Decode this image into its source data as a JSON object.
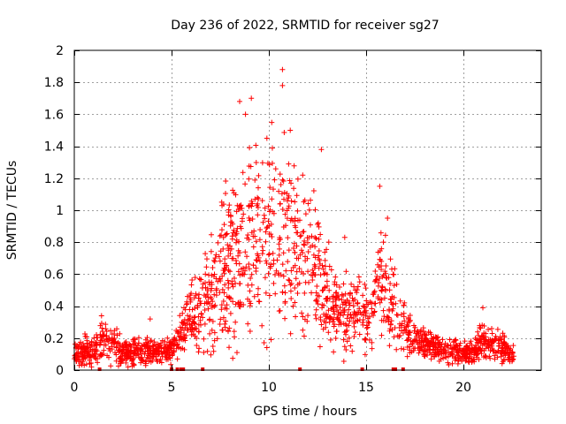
{
  "chart_data": {
    "type": "scatter",
    "title": "Day 236 of 2022, SRMTID for receiver sg27",
    "xlabel": "GPS time / hours",
    "ylabel": "SRMTID / TECUs",
    "xlim": [
      0,
      24
    ],
    "ylim": [
      0,
      2
    ],
    "xticks": [
      0,
      5,
      10,
      15,
      20
    ],
    "yticks": [
      0,
      0.2,
      0.4,
      0.6,
      0.8,
      1,
      1.2,
      1.4,
      1.6,
      1.8,
      2
    ],
    "grid": true,
    "marker": "plus",
    "marker_color": "#ff0000",
    "data_extent_hours": [
      0,
      22.6
    ],
    "activity_profile": [
      {
        "t": 0.0,
        "base": 0.1,
        "spread": 0.08
      },
      {
        "t": 1.0,
        "base": 0.13,
        "spread": 0.12
      },
      {
        "t": 1.5,
        "base": 0.18,
        "spread": 0.15
      },
      {
        "t": 2.5,
        "base": 0.12,
        "spread": 0.1
      },
      {
        "t": 4.0,
        "base": 0.11,
        "spread": 0.09
      },
      {
        "t": 5.0,
        "base": 0.12,
        "spread": 0.08
      },
      {
        "t": 5.5,
        "base": 0.25,
        "spread": 0.15
      },
      {
        "t": 6.5,
        "base": 0.4,
        "spread": 0.3
      },
      {
        "t": 7.5,
        "base": 0.55,
        "spread": 0.45
      },
      {
        "t": 8.5,
        "base": 0.75,
        "spread": 0.6
      },
      {
        "t": 9.5,
        "base": 0.8,
        "spread": 0.65
      },
      {
        "t": 10.5,
        "base": 0.8,
        "spread": 0.7
      },
      {
        "t": 11.5,
        "base": 0.72,
        "spread": 0.55
      },
      {
        "t": 12.5,
        "base": 0.62,
        "spread": 0.45
      },
      {
        "t": 13.5,
        "base": 0.35,
        "spread": 0.25
      },
      {
        "t": 14.5,
        "base": 0.35,
        "spread": 0.25
      },
      {
        "t": 15.2,
        "base": 0.35,
        "spread": 0.2
      },
      {
        "t": 15.8,
        "base": 0.6,
        "spread": 0.4
      },
      {
        "t": 16.5,
        "base": 0.35,
        "spread": 0.25
      },
      {
        "t": 17.5,
        "base": 0.2,
        "spread": 0.12
      },
      {
        "t": 19.0,
        "base": 0.13,
        "spread": 0.08
      },
      {
        "t": 20.5,
        "base": 0.1,
        "spread": 0.07
      },
      {
        "t": 21.0,
        "base": 0.18,
        "spread": 0.15
      },
      {
        "t": 22.6,
        "base": 0.1,
        "spread": 0.06
      }
    ],
    "notable_points": [
      {
        "x": 10.7,
        "y": 1.88
      },
      {
        "x": 10.7,
        "y": 1.78
      },
      {
        "x": 8.5,
        "y": 1.68
      },
      {
        "x": 9.1,
        "y": 1.7
      },
      {
        "x": 8.8,
        "y": 1.6
      },
      {
        "x": 11.1,
        "y": 1.5
      },
      {
        "x": 9.9,
        "y": 1.45
      },
      {
        "x": 12.7,
        "y": 1.38
      },
      {
        "x": 15.7,
        "y": 1.15
      },
      {
        "x": 16.1,
        "y": 0.95
      },
      {
        "x": 13.9,
        "y": 0.83
      },
      {
        "x": 21.0,
        "y": 0.39
      },
      {
        "x": 1.4,
        "y": 0.34
      },
      {
        "x": 3.9,
        "y": 0.32
      }
    ],
    "zero_value_times": [
      1.3,
      5.0,
      5.3,
      5.5,
      5.6,
      6.6,
      11.6,
      14.8,
      16.4,
      16.5,
      16.9
    ]
  }
}
